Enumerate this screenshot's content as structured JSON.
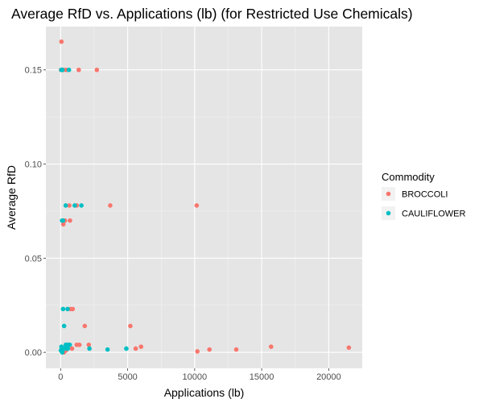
{
  "chart_data": {
    "type": "scatter",
    "title": "Average RfD vs. Applications (lb) (for Restricted Use Chemicals)",
    "xlabel": "Applications (lb)",
    "ylabel": "Average RfD",
    "xlim": [
      -1100,
      22500
    ],
    "ylim": [
      -0.0085,
      0.173
    ],
    "x_ticks": [
      0,
      5000,
      10000,
      15000,
      20000
    ],
    "y_ticks": [
      0.0,
      0.05,
      0.1,
      0.15
    ],
    "x_tick_labels": [
      "0",
      "5000",
      "10000",
      "15000",
      "20000"
    ],
    "y_tick_labels": [
      "0.00",
      "0.05",
      "0.10",
      "0.15"
    ],
    "grid": true,
    "panel_background": "#e5e5e5",
    "legend": {
      "title": "Commodity",
      "placement": "right",
      "entries": [
        "BROCCOLI",
        "CAULIFLOWER"
      ]
    },
    "series": [
      {
        "name": "BROCCOLI",
        "color": "#f8766d",
        "points": [
          [
            60,
            0.165
          ],
          [
            30,
            0.15
          ],
          [
            200,
            0.15
          ],
          [
            420,
            0.15
          ],
          [
            1350,
            0.15
          ],
          [
            2700,
            0.15
          ],
          [
            650,
            0.078
          ],
          [
            1200,
            0.078
          ],
          [
            3700,
            0.078
          ],
          [
            10150,
            0.078
          ],
          [
            320,
            0.07
          ],
          [
            700,
            0.07
          ],
          [
            200,
            0.068
          ],
          [
            750,
            0.023
          ],
          [
            900,
            0.023
          ],
          [
            1800,
            0.014
          ],
          [
            5200,
            0.014
          ],
          [
            1200,
            0.004
          ],
          [
            1400,
            0.004
          ],
          [
            2100,
            0.004
          ],
          [
            600,
            0.004
          ],
          [
            850,
            0.002
          ],
          [
            5600,
            0.002
          ],
          [
            6000,
            0.003
          ],
          [
            11100,
            0.0015
          ],
          [
            13100,
            0.0015
          ],
          [
            15700,
            0.003
          ],
          [
            21500,
            0.0025
          ],
          [
            10200,
            0.0005
          ],
          [
            200,
            0.0005
          ],
          [
            400,
            0.001
          ],
          [
            250,
            0.0
          ]
        ]
      },
      {
        "name": "CAULIFLOWER",
        "color": "#00bfc4",
        "points": [
          [
            50,
            0.15
          ],
          [
            130,
            0.15
          ],
          [
            620,
            0.15
          ],
          [
            380,
            0.078
          ],
          [
            1050,
            0.078
          ],
          [
            1550,
            0.078
          ],
          [
            110,
            0.07
          ],
          [
            180,
            0.07
          ],
          [
            180,
            0.023
          ],
          [
            520,
            0.023
          ],
          [
            260,
            0.014
          ],
          [
            380,
            0.004
          ],
          [
            520,
            0.004
          ],
          [
            680,
            0.004
          ],
          [
            90,
            0.002
          ],
          [
            240,
            0.002
          ],
          [
            330,
            0.002
          ],
          [
            460,
            0.002
          ],
          [
            540,
            0.002
          ],
          [
            2150,
            0.002
          ],
          [
            4900,
            0.002
          ],
          [
            3500,
            0.0015
          ],
          [
            20,
            0.001
          ],
          [
            100,
            0.0005
          ],
          [
            120,
            0.0
          ],
          [
            60,
            0.003
          ]
        ]
      }
    ]
  }
}
